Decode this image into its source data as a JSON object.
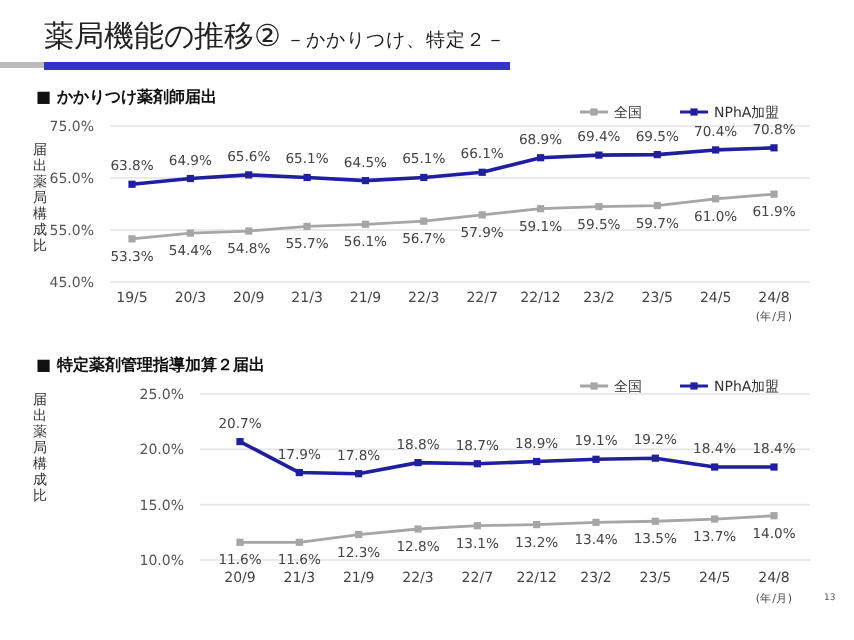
{
  "chart_data": [
    {
      "type": "line",
      "title": "薬局機能の推移②",
      "subtitle": "－かかりつけ、特定２－",
      "annotations": [
        "■ かかりつけ薬剤師届出"
      ],
      "ylabel": "届出薬局構成比",
      "xlabel": "(年/月)",
      "categories": [
        "19/5",
        "20/3",
        "20/9",
        "21/3",
        "21/9",
        "22/3",
        "22/7",
        "22/12",
        "23/2",
        "23/5",
        "24/5",
        "24/8"
      ],
      "series": [
        {
          "name": "全国",
          "color": "#a6a6a6",
          "values": [
            53.3,
            54.4,
            54.8,
            55.7,
            56.1,
            56.7,
            57.9,
            59.1,
            59.5,
            59.7,
            61.0,
            61.9
          ],
          "value_labels": [
            "53.3%",
            "54.4%",
            "54.8%",
            "55.7%",
            "56.1%",
            "56.7%",
            "57.9%",
            "59.1%",
            "59.5%",
            "59.7%",
            "61.0%",
            "61.9%"
          ]
        },
        {
          "name": "NPhA加盟",
          "color": "#1f1fa0",
          "values": [
            63.8,
            64.9,
            65.6,
            65.1,
            64.5,
            65.1,
            66.1,
            68.9,
            69.4,
            69.5,
            70.4,
            70.8
          ],
          "value_labels": [
            "63.8%",
            "64.9%",
            "65.6%",
            "65.1%",
            "64.5%",
            "65.1%",
            "66.1%",
            "68.9%",
            "69.4%",
            "69.5%",
            "70.4%",
            "70.8%"
          ]
        }
      ],
      "ylim": [
        45,
        75
      ],
      "yticks": [
        {
          "value": 45,
          "label": "45.0%"
        },
        {
          "value": 55,
          "label": "55.0%"
        },
        {
          "value": 65,
          "label": "65.0%"
        },
        {
          "value": 75,
          "label": "75.0%"
        }
      ],
      "grid": "y",
      "legend": "top right",
      "marker": "square",
      "line_style": "solid"
    },
    {
      "type": "line",
      "title": "■ 特定薬剤管理指導加算２届出",
      "annotations": [
        "13"
      ],
      "ylabel": "届出薬局構成比",
      "xlabel": "(年/月)",
      "categories": [
        "20/9",
        "21/3",
        "21/9",
        "22/3",
        "22/7",
        "22/12",
        "23/2",
        "23/5",
        "24/5",
        "24/8"
      ],
      "series": [
        {
          "name": "全国",
          "color": "#a6a6a6",
          "values": [
            11.6,
            11.6,
            12.3,
            12.8,
            13.1,
            13.2,
            13.4,
            13.5,
            13.7,
            14.0
          ],
          "value_labels": [
            "11.6%",
            "11.6%",
            "12.3%",
            "12.8%",
            "13.1%",
            "13.2%",
            "13.4%",
            "13.5%",
            "13.7%",
            "14.0%"
          ]
        },
        {
          "name": "NPhA加盟",
          "color": "#1f1fa0",
          "values": [
            20.7,
            17.9,
            17.8,
            18.8,
            18.7,
            18.9,
            19.1,
            19.2,
            18.4,
            18.4
          ],
          "value_labels": [
            "20.7%",
            "17.9%",
            "17.8%",
            "18.8%",
            "18.7%",
            "18.9%",
            "19.1%",
            "19.2%",
            "18.4%",
            "18.4%"
          ]
        }
      ],
      "ylim": [
        10,
        25
      ],
      "yticks": [
        {
          "value": 10,
          "label": "10.0%"
        },
        {
          "value": 15,
          "label": "15.0%"
        },
        {
          "value": 20,
          "label": "20.0%"
        },
        {
          "value": 25,
          "label": "25.0%"
        }
      ],
      "grid": "y",
      "legend": "top right",
      "marker": "square",
      "line_style": "solid"
    }
  ]
}
